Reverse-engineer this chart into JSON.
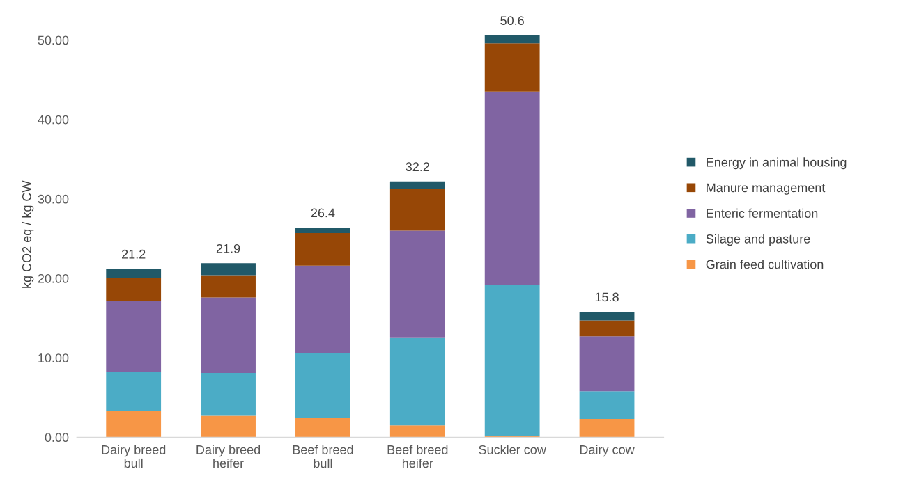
{
  "chart_data": {
    "type": "bar",
    "stacked": true,
    "ylabel": "kg CO2 eq / kg CW",
    "categories": [
      "Dairy breed\nbull",
      "Dairy breed\nheifer",
      "Beef breed\nbull",
      "Beef breed\nheifer",
      "Suckler cow",
      "Dairy cow"
    ],
    "series": [
      {
        "name": "Grain feed cultivation",
        "color": "#f79646",
        "values": [
          3.3,
          2.7,
          2.4,
          1.5,
          0.2,
          2.3
        ]
      },
      {
        "name": "Silage and pasture",
        "color": "#4bacc6",
        "values": [
          4.9,
          5.4,
          8.2,
          11.0,
          19.0,
          3.5
        ]
      },
      {
        "name": "Enteric fermentation",
        "color": "#8064a2",
        "values": [
          9.0,
          9.5,
          11.0,
          13.5,
          24.3,
          6.9
        ]
      },
      {
        "name": "Manure management",
        "color": "#974706",
        "values": [
          2.8,
          2.8,
          4.1,
          5.3,
          6.1,
          2.0
        ]
      },
      {
        "name": "Energy in animal housing",
        "color": "#215968",
        "values": [
          1.2,
          1.5,
          0.7,
          0.9,
          1.0,
          1.1
        ]
      }
    ],
    "totals": [
      "21.2",
      "21.9",
      "26.4",
      "32.2",
      "50.6",
      "15.8"
    ],
    "ylim": [
      0,
      51
    ],
    "yticks": [
      {
        "value": 0,
        "label": "0.00"
      },
      {
        "value": 10,
        "label": "10.00"
      },
      {
        "value": 20,
        "label": "20.00"
      },
      {
        "value": 30,
        "label": "30.00"
      },
      {
        "value": 40,
        "label": "40.00"
      },
      {
        "value": 50,
        "label": "50.00"
      }
    ],
    "grid": false,
    "legend": "right"
  }
}
